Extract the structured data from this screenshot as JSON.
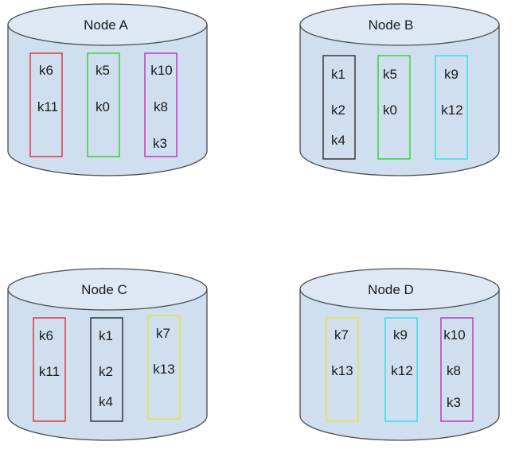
{
  "colors": {
    "cylinder_fill": "#cfdff0",
    "cylinder_top_fill": "#dde8f4",
    "cylinder_stroke": "#4a4a4a",
    "red": "#e02020",
    "green": "#20d020",
    "magenta": "#c020c0",
    "black": "#202020",
    "cyan": "#20e0e0",
    "yellow": "#e8e820"
  },
  "nodes": {
    "a": {
      "title": "Node A",
      "groups": [
        {
          "color": "red",
          "keys": [
            "k6",
            "k11"
          ]
        },
        {
          "color": "green",
          "keys": [
            "k5",
            "k0"
          ]
        },
        {
          "color": "magenta",
          "keys": [
            "k10",
            "k8",
            "k3"
          ]
        }
      ]
    },
    "b": {
      "title": "Node B",
      "groups": [
        {
          "color": "black",
          "keys": [
            "k1",
            "k2",
            "k4"
          ]
        },
        {
          "color": "green",
          "keys": [
            "k5",
            "k0"
          ]
        },
        {
          "color": "cyan",
          "keys": [
            "k9",
            "k12"
          ]
        }
      ]
    },
    "c": {
      "title": "Node C",
      "groups": [
        {
          "color": "red",
          "keys": [
            "k6",
            "k11"
          ]
        },
        {
          "color": "black",
          "keys": [
            "k1",
            "k2",
            "k4"
          ]
        },
        {
          "color": "yellow",
          "keys": [
            "k7",
            "k13"
          ]
        }
      ]
    },
    "d": {
      "title": "Node D",
      "groups": [
        {
          "color": "yellow",
          "keys": [
            "k7",
            "k13"
          ]
        },
        {
          "color": "cyan",
          "keys": [
            "k9",
            "k12"
          ]
        },
        {
          "color": "magenta",
          "keys": [
            "k10",
            "k8",
            "k3"
          ]
        }
      ]
    }
  }
}
